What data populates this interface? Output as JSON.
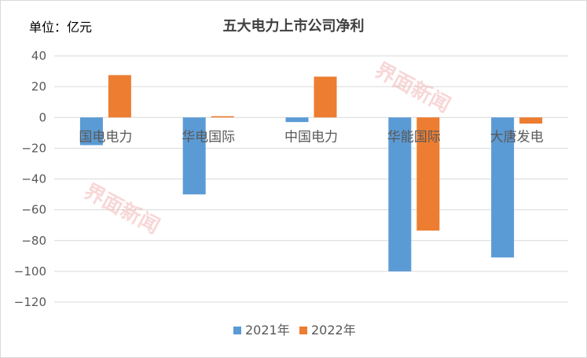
{
  "unit_label": "单位：亿元",
  "watermark": "界面新闻",
  "colors": {
    "series_2021": "#5b9bd5",
    "series_2022": "#ed7d31",
    "grid": "#d9d9d9"
  },
  "chart_data": {
    "type": "bar",
    "title": "五大电力上市公司净利",
    "xlabel": "",
    "ylabel": "",
    "categories": [
      "国电电力",
      "华电国际",
      "中国电力",
      "华能国际",
      "大唐发电"
    ],
    "series": [
      {
        "name": "2021年",
        "values": [
          -18,
          -50,
          -3,
          -100,
          -91
        ]
      },
      {
        "name": "2022年",
        "values": [
          27.5,
          0.8,
          26.5,
          -73.5,
          -4
        ]
      }
    ],
    "ylim": [
      -120,
      40
    ],
    "yticks": [
      40,
      20,
      0,
      -20,
      -40,
      -60,
      -80,
      -100,
      -120
    ],
    "ytick_labels": [
      "40",
      "20",
      "0",
      "−20",
      "−40",
      "−60",
      "−80",
      "−100",
      "−120"
    ],
    "grid": true,
    "legend_position": "bottom"
  }
}
